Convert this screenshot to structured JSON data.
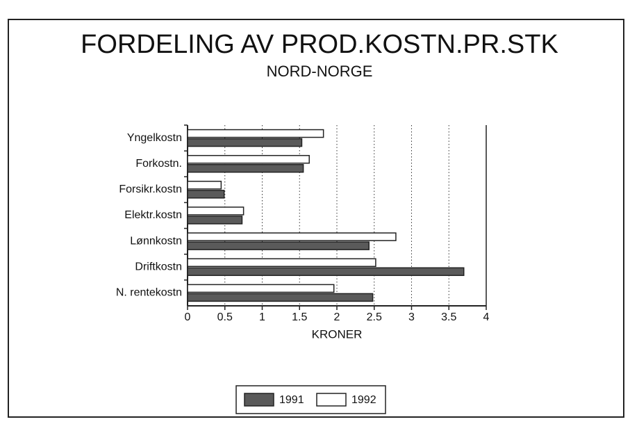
{
  "chart_data": {
    "type": "barh",
    "title": "FORDELING AV PROD.KOSTN.PR.STK",
    "subtitle": "NORD-NORGE",
    "x_label": "KRONER",
    "categories": [
      "Yngelkostn",
      "Forkostn.",
      "Forsikr.kostn",
      "Elektr.kostn",
      "Lønnkostn",
      "Driftkostn",
      "N. rentekostn"
    ],
    "series": [
      {
        "name": "1991",
        "color": "#5a5a5a",
        "values": [
          1.53,
          1.55,
          0.49,
          0.73,
          2.43,
          3.7,
          2.48
        ]
      },
      {
        "name": "1992",
        "color": "#ffffff",
        "values": [
          1.82,
          1.63,
          0.45,
          0.75,
          2.79,
          2.52,
          1.96
        ]
      }
    ],
    "xlim": [
      0,
      4
    ],
    "xticks": [
      0,
      0.5,
      1,
      1.5,
      2,
      2.5,
      3,
      3.5,
      4
    ],
    "grid": true
  }
}
